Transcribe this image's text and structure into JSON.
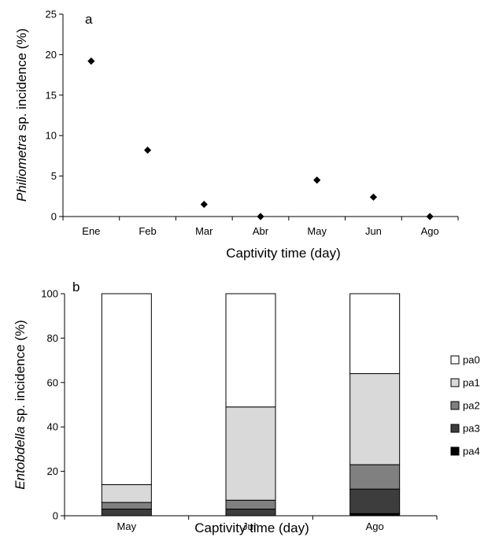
{
  "chart_data": [
    {
      "type": "scatter",
      "panel_label": "a",
      "categories": [
        "Ene",
        "Feb",
        "Mar",
        "Abr",
        "May",
        "Jun",
        "Ago"
      ],
      "values": [
        19.2,
        8.2,
        1.5,
        0,
        4.5,
        2.4,
        0
      ],
      "trendline": true,
      "marker": "diamond",
      "ylim": [
        0,
        25
      ],
      "yticks": [
        "0",
        "5",
        "10",
        "15",
        "20",
        "25"
      ],
      "ytick_values": [
        0,
        5,
        10,
        15,
        20,
        25
      ],
      "ylabel_italic": "Philiometra",
      "ylabel_rest": " sp. incidence (%)",
      "xlabel": "Captivity time (day)",
      "grid": false
    },
    {
      "type": "bar",
      "stacked": true,
      "panel_label": "b",
      "categories": [
        "May",
        "Jun",
        "Ago"
      ],
      "series": [
        {
          "name": "pa4",
          "color": "#000000",
          "values": [
            0,
            0,
            1
          ]
        },
        {
          "name": "pa3",
          "color": "#3d3d3d",
          "values": [
            3,
            3,
            11
          ]
        },
        {
          "name": "pa2",
          "color": "#808080",
          "values": [
            3,
            4,
            11
          ]
        },
        {
          "name": "pa1",
          "color": "#d9d9d9",
          "values": [
            8,
            42,
            41
          ]
        },
        {
          "name": "pa0",
          "color": "#ffffff",
          "values": [
            86,
            51,
            36
          ]
        }
      ],
      "ylim": [
        0,
        100
      ],
      "yticks": [
        "0",
        "20",
        "40",
        "60",
        "80",
        "100"
      ],
      "ytick_values": [
        0,
        20,
        40,
        60,
        80,
        100
      ],
      "ylabel_italic": "Entobdella",
      "ylabel_rest": " sp. incidence (%)",
      "xlabel": "Captivity time (day)",
      "legend_position": "right",
      "legend_order": [
        "pa0",
        "pa1",
        "pa2",
        "pa3",
        "pa4"
      ],
      "grid": false
    }
  ]
}
